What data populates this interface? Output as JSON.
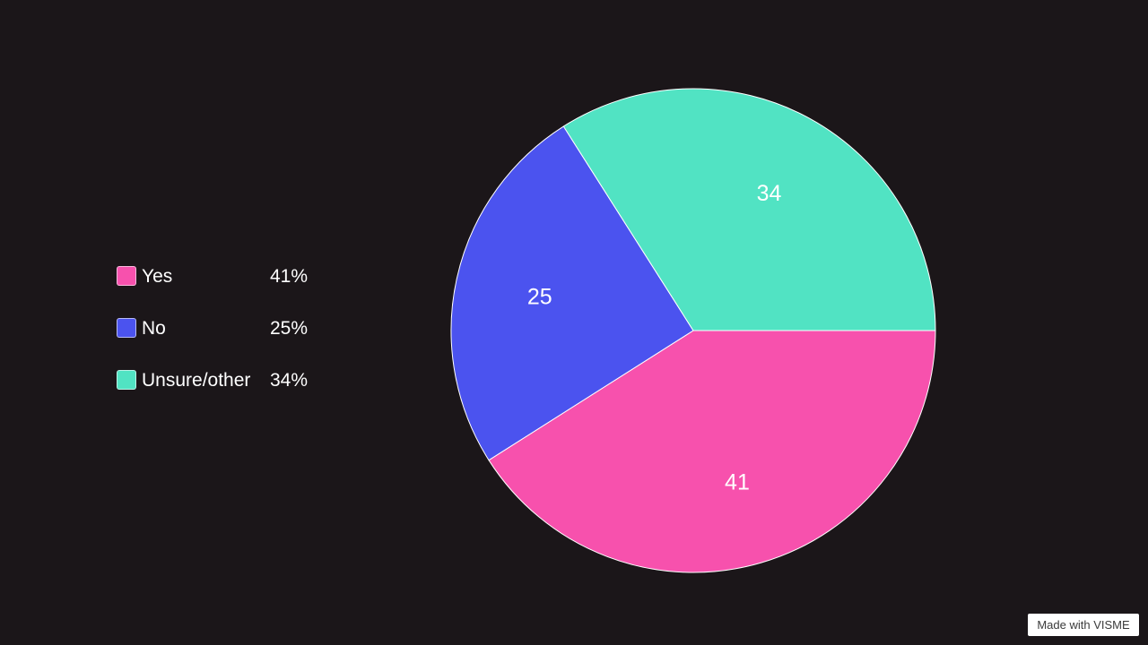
{
  "chart_data": {
    "type": "pie",
    "slices": [
      {
        "label": "Yes",
        "value": 41,
        "percent_label": "41%",
        "color": "#f751ad"
      },
      {
        "label": "No",
        "value": 25,
        "percent_label": "25%",
        "color": "#4b53ef"
      },
      {
        "label": "Unsure/other",
        "value": 34,
        "percent_label": "34%",
        "color": "#51e3c3"
      }
    ],
    "legend_position": "left"
  },
  "legend": [
    {
      "label": "Yes",
      "value": "41%",
      "color": "#f751ad"
    },
    {
      "label": "No",
      "value": "25%",
      "color": "#4b53ef"
    },
    {
      "label": "Unsure/other",
      "value": "34%",
      "color": "#51e3c3"
    }
  ],
  "watermark": "Made with VISME"
}
